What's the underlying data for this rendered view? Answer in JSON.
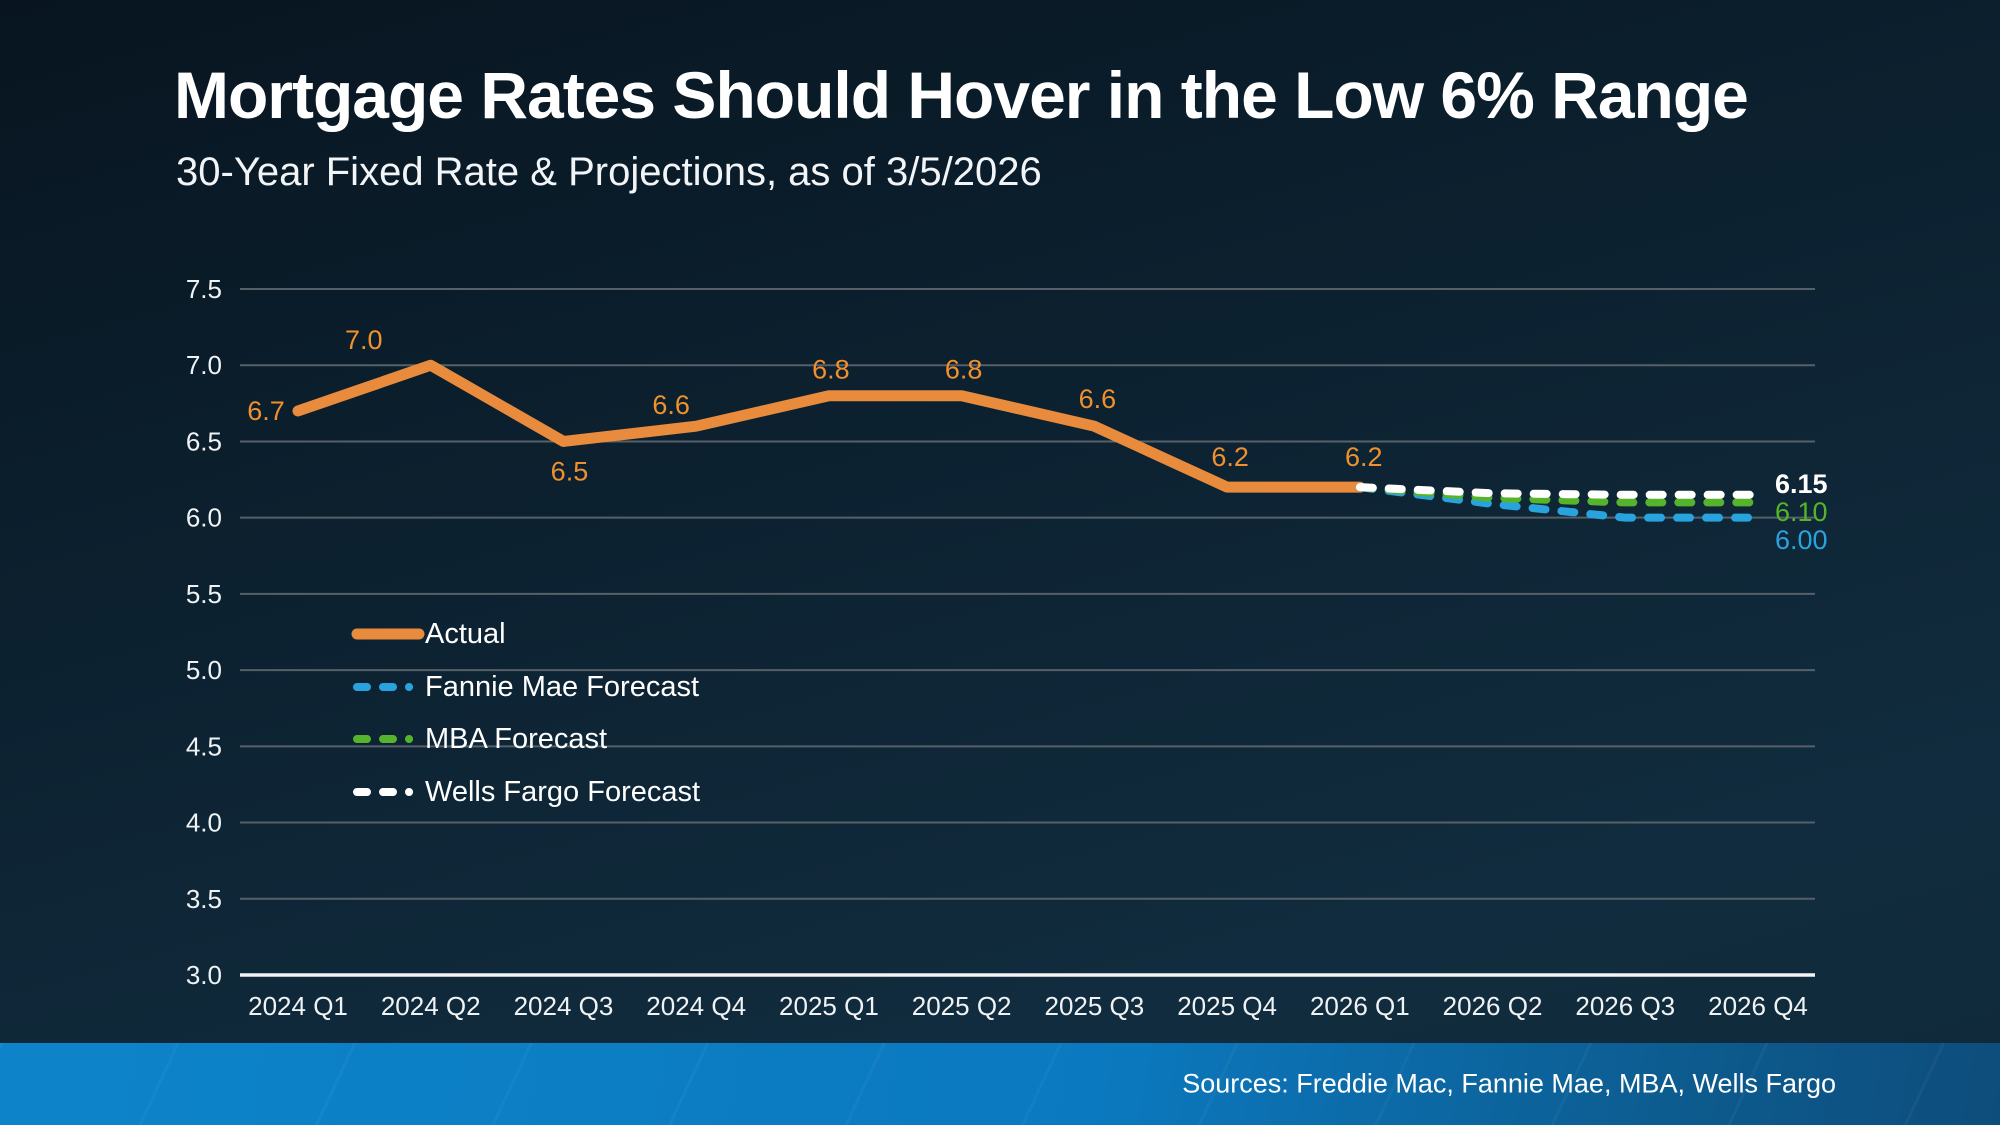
{
  "header": {
    "title": "Mortgage Rates Should Hover in the Low 6% Range",
    "subtitle": "30-Year Fixed Rate & Projections, as of 3/5/2026"
  },
  "footer": {
    "sources": "Sources: Freddie Mac, Fannie Mae, MBA, Wells Fargo"
  },
  "colors": {
    "background_top": "#081520",
    "background_bottom": "#112c3e",
    "gridline": "#566069",
    "axis_line": "#f2f4f6",
    "axis_text": "#f0f3f5",
    "actual_orange": "#e98b3c",
    "label_orange": "#f0912d",
    "fannie_blue": "#29a3dd",
    "mba_green": "#56b32c",
    "wells_white": "#ffffff",
    "footer_blue_left": "#0d84ca",
    "footer_blue_right": "#0d4d7b"
  },
  "chart_data": {
    "type": "line",
    "title": "30-Year Fixed Rate & Projections",
    "categories": [
      "2024 Q1",
      "2024 Q2",
      "2024 Q3",
      "2024 Q4",
      "2025 Q1",
      "2025 Q2",
      "2025 Q3",
      "2025 Q4",
      "2026 Q1",
      "2026 Q2",
      "2026 Q3",
      "2026 Q4"
    ],
    "y_axis": {
      "min": 3.0,
      "max": 7.5,
      "step": 0.5
    },
    "grid": true,
    "legend_position": "middle-left",
    "series": [
      {
        "name": "Actual",
        "color": "#e98b3c",
        "style": "solid",
        "x_start": 0,
        "values": [
          6.7,
          7.0,
          6.5,
          6.6,
          6.8,
          6.8,
          6.6,
          6.2,
          6.2
        ],
        "point_labels": [
          "6.7",
          "7.0",
          "6.5",
          "6.6",
          "6.8",
          "6.8",
          "6.6",
          "6.2",
          "6.2"
        ],
        "label_offsets": [
          [
            -32,
            0
          ],
          [
            -67,
            -25
          ],
          [
            6,
            30
          ],
          [
            -25,
            -21
          ],
          [
            2,
            -26
          ],
          [
            2,
            -26
          ],
          [
            3,
            -27
          ],
          [
            3,
            -30
          ],
          [
            4,
            -30
          ]
        ]
      },
      {
        "name": "Fannie Mae Forecast",
        "color": "#29a3dd",
        "style": "dashed",
        "x_start": 8,
        "values": [
          6.2,
          6.09,
          6.0,
          6.0
        ],
        "end_label": "6.00",
        "end_label_y": 540,
        "end_label_bold": false
      },
      {
        "name": "MBA Forecast",
        "color": "#56b32c",
        "style": "dashed",
        "x_start": 8,
        "values": [
          6.2,
          6.13,
          6.1,
          6.1
        ],
        "end_label": "6.10",
        "end_label_y": 512,
        "end_label_bold": false
      },
      {
        "name": "Wells Fargo Forecast",
        "color": "#ffffff",
        "style": "dashed",
        "x_start": 8,
        "values": [
          6.2,
          6.16,
          6.15,
          6.15
        ],
        "end_label": "6.15",
        "end_label_y": 484,
        "end_label_bold": true
      }
    ],
    "legend": [
      "Actual",
      "Fannie Mae Forecast",
      "MBA Forecast",
      "Wells Fargo Forecast"
    ]
  }
}
